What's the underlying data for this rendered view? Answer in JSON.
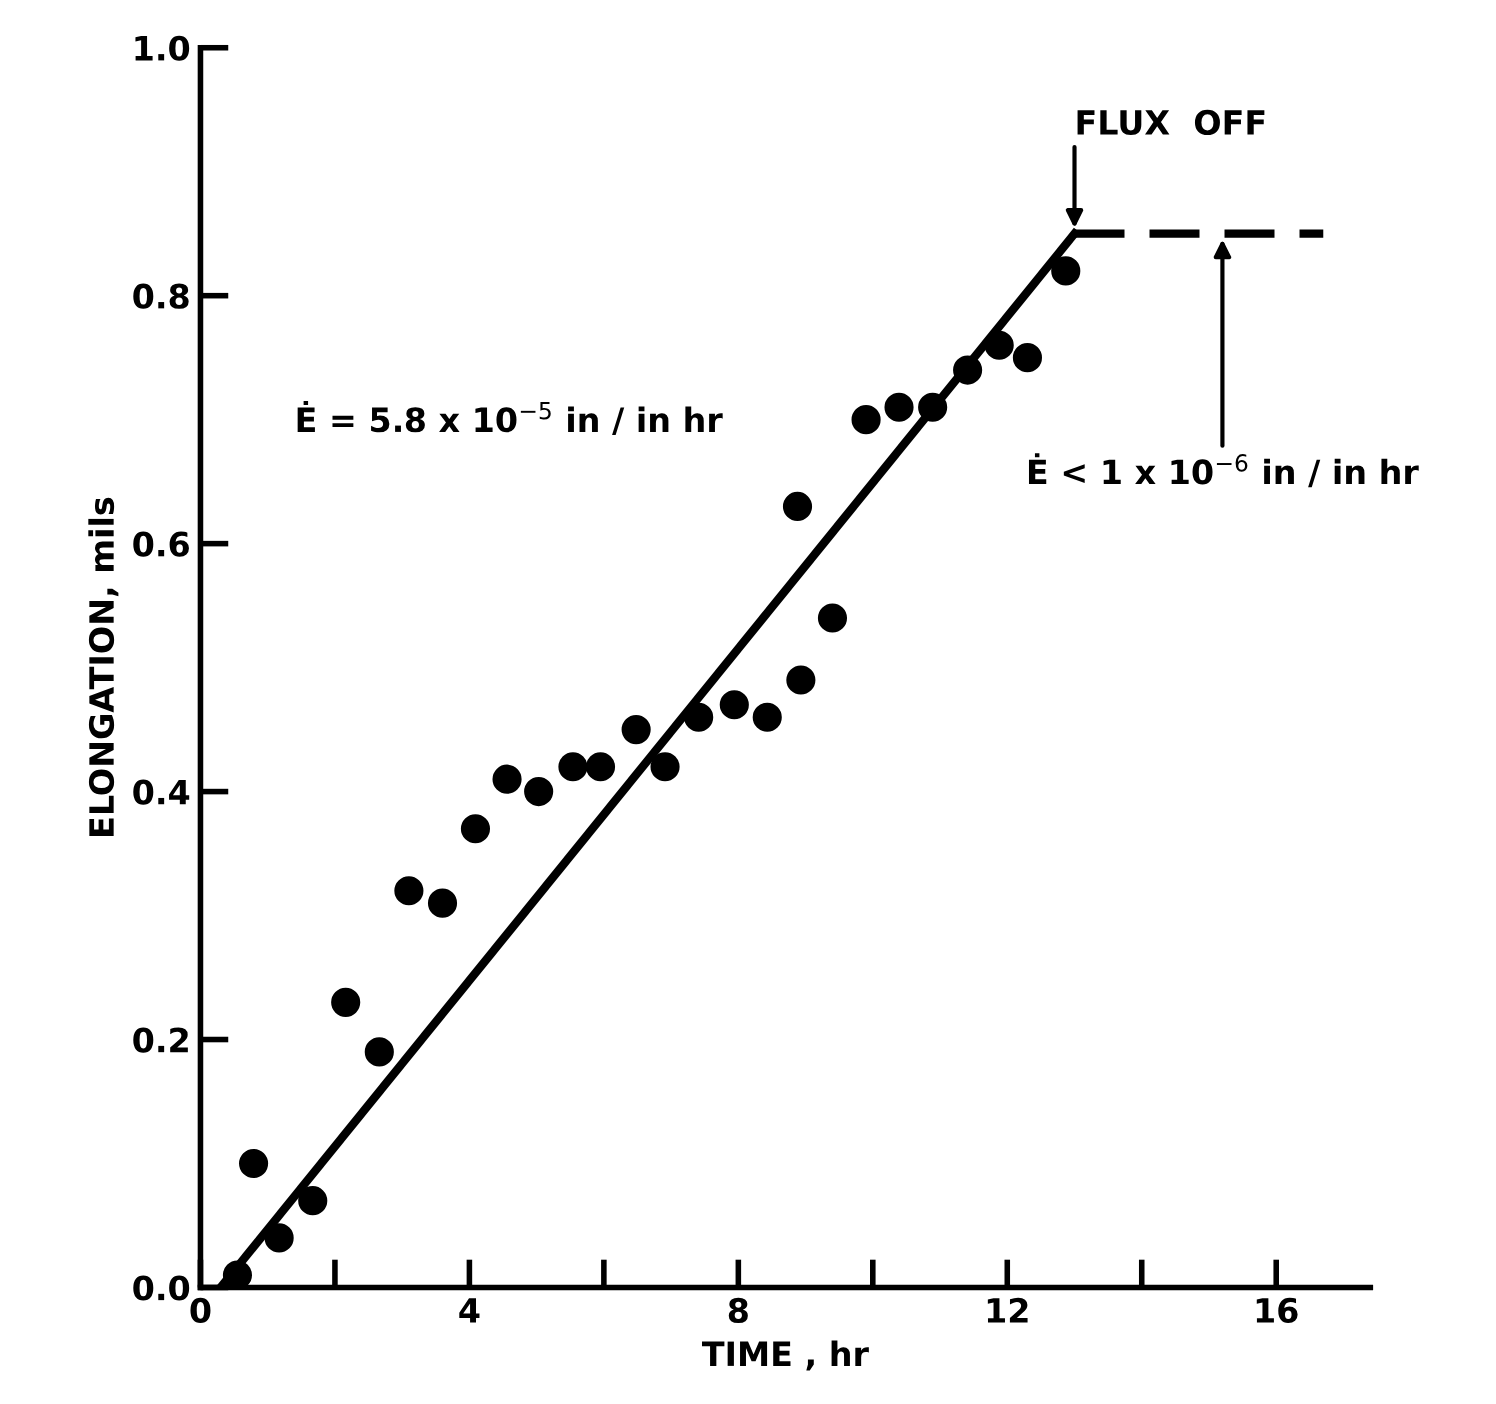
{
  "chart_data": {
    "type": "scatter",
    "xlabel": "TIME , hr",
    "ylabel": "ELONGATION, mils",
    "xlim": [
      0,
      17.4
    ],
    "ylim": [
      0,
      1.0
    ],
    "xticks": [
      0,
      {
        "value": 2,
        "label": null
      },
      4,
      {
        "value": 6,
        "label": null
      },
      8,
      {
        "value": 10,
        "label": null
      },
      12,
      {
        "value": 14,
        "label": null
      },
      16
    ],
    "yticks": [
      {
        "value": 0,
        "label": "0.0"
      },
      {
        "value": 0.2,
        "label": "0.2"
      },
      {
        "value": 0.4,
        "label": "0.4"
      },
      {
        "value": 0.6,
        "label": "0.6"
      },
      {
        "value": 0.8,
        "label": "0.8"
      },
      {
        "value": 1.0,
        "label": "1.0"
      }
    ],
    "grid": false,
    "series": [
      {
        "color": "#000000",
        "marker": "circle",
        "x": [
          0.55,
          0.79,
          1.17,
          1.67,
          2.16,
          2.66,
          3.1,
          3.6,
          4.09,
          4.56,
          5.03,
          5.54,
          5.95,
          6.48,
          6.91,
          7.41,
          7.94,
          8.43,
          8.93,
          8.88,
          9.4,
          9.9,
          10.39,
          10.89,
          11.41,
          11.88,
          12.3,
          12.87
        ],
        "values": [
          0.01,
          0.1,
          0.04,
          0.07,
          0.23,
          0.19,
          0.32,
          0.31,
          0.37,
          0.41,
          0.4,
          0.42,
          0.42,
          0.45,
          0.42,
          0.46,
          0.47,
          0.46,
          0.49,
          0.63,
          0.54,
          0.7,
          0.71,
          0.71,
          0.74,
          0.76,
          0.75,
          0.82
        ]
      },
      {
        "type": "line",
        "color": "#000000",
        "line_style": "solid",
        "x": [
          0.3,
          13.0
        ],
        "values": [
          0,
          0.85
        ]
      },
      {
        "type": "line",
        "color": "#000000",
        "line_style": "dashed",
        "x": [
          13.0,
          16.7
        ],
        "values": [
          0.85,
          0.85
        ]
      }
    ],
    "annotations": [
      {
        "text": "FLUX  OFF",
        "x": 13.0,
        "y": 0.85
      },
      "Ė = 5.8 x 10$^{−5}$ in / in hr",
      "Ė < 1 x 10$^{−6}$ in / in hr"
    ]
  }
}
